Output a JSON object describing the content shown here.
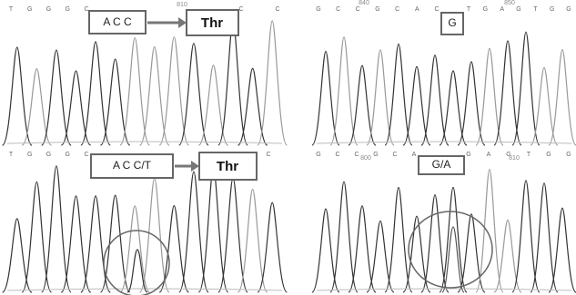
{
  "panels": [
    {
      "bases": [
        "T",
        "G",
        "G",
        "G",
        "C"
      ],
      "bases_right": [
        "C",
        "C"
      ],
      "codon": "A C C",
      "amino_acid": "Thr",
      "position": "810"
    },
    {
      "bases": [
        "G",
        "C",
        "C",
        "G",
        "C",
        "A",
        "C"
      ],
      "bases_right": [
        "T",
        "G",
        "A",
        "G",
        "T",
        "G",
        "G"
      ],
      "codon": "G",
      "position_left": "840",
      "position_right": "850"
    },
    {
      "bases": [
        "T",
        "G",
        "G",
        "G",
        "C"
      ],
      "bases_right": [
        "C"
      ],
      "codon": "A C C/T",
      "amino_acid": "Thr"
    },
    {
      "bases": [
        "G",
        "C",
        "C",
        "G",
        "C",
        "A"
      ],
      "bases_right": [
        "G",
        "A",
        "G",
        "T",
        "G",
        "G"
      ],
      "codon": "G/A",
      "position_left": "800",
      "position_right": "810"
    }
  ]
}
